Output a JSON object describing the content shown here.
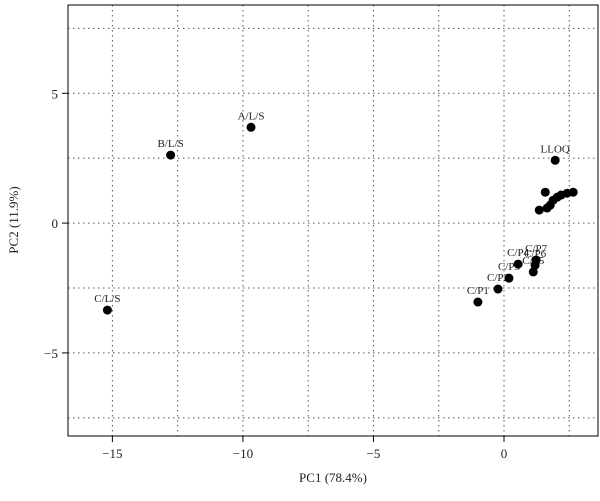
{
  "chart_data": {
    "type": "scatter",
    "x_label": "PC1 (78.4%)",
    "y_label": "PC2 (11.9%)",
    "xlim": [
      -16.7,
      3.6
    ],
    "ylim": [
      -8.2,
      8.4
    ],
    "xticks": [
      {
        "value": -15,
        "label": "−15"
      },
      {
        "value": -10,
        "label": "−10"
      },
      {
        "value": -5,
        "label": "−5"
      },
      0
    ],
    "yticks": [
      {
        "value": -5,
        "label": "−5"
      },
      0,
      5
    ],
    "xgrid": [
      -15,
      -12.5,
      -10,
      -7.5,
      -5,
      -2.5,
      0,
      2.5
    ],
    "ygrid": [
      -7.5,
      -5,
      -2.5,
      0,
      2.5,
      5,
      7.5
    ],
    "grid": true,
    "color": "#000000",
    "labels": [
      "A/L/S",
      "B/L/S",
      "C/L/S",
      "LLOQ",
      "C/P1",
      "C/P2",
      "C/P3",
      "C/P4",
      "C/P5",
      "C/P6",
      "C/P7",
      null,
      null,
      null,
      null,
      null,
      null,
      null,
      null,
      null
    ],
    "x": [
      -9.69,
      -12.77,
      -15.19,
      1.96,
      -1.0,
      -0.23,
      0.19,
      0.54,
      1.12,
      1.19,
      1.23,
      1.35,
      1.65,
      1.77,
      1.88,
      2.04,
      2.19,
      1.58,
      2.42,
      2.65
    ],
    "y": [
      3.69,
      2.62,
      -3.35,
      2.42,
      -3.04,
      -2.54,
      -2.12,
      -1.58,
      -1.88,
      -1.62,
      -1.42,
      0.5,
      0.58,
      0.69,
      0.88,
      1.0,
      1.08,
      1.19,
      1.15,
      1.19
    ]
  }
}
